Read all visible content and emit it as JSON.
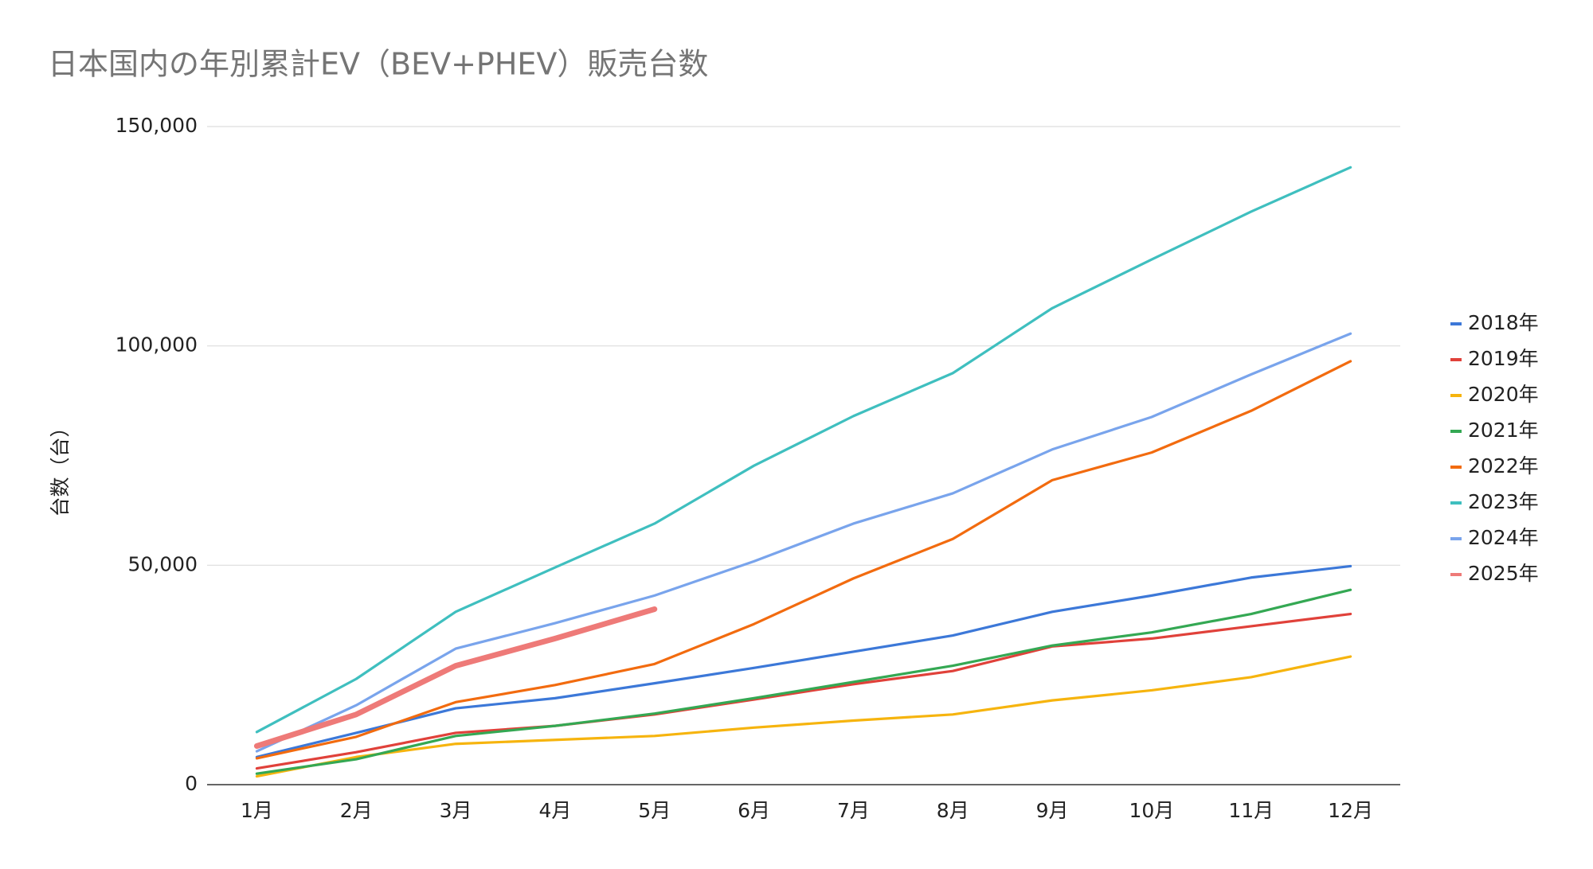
{
  "chart_data": {
    "type": "line",
    "title": "日本国内の年別累計EV（BEV+PHEV）販売台数",
    "y_label": "台数（台）",
    "categories": [
      "1月",
      "2月",
      "3月",
      "4月",
      "5月",
      "6月",
      "7月",
      "8月",
      "9月",
      "10月",
      "11月",
      "12月"
    ],
    "series": [
      {
        "name": "2018年",
        "color": "#3c78d8",
        "values": [
          6300,
          11800,
          17400,
          19700,
          23100,
          26600,
          30300,
          34000,
          39400,
          43100,
          47200,
          49800
        ]
      },
      {
        "name": "2019年",
        "color": "#e0413a",
        "values": [
          3700,
          7400,
          11800,
          13400,
          16000,
          19400,
          22900,
          25900,
          31500,
          33300,
          36100,
          38900
        ]
      },
      {
        "name": "2020年",
        "color": "#f6b40e",
        "values": [
          1900,
          6300,
          9300,
          10200,
          11100,
          13000,
          14600,
          16000,
          19200,
          21500,
          24500,
          29200
        ]
      },
      {
        "name": "2021年",
        "color": "#34a853",
        "values": [
          2500,
          5800,
          11100,
          13400,
          16200,
          19700,
          23400,
          27100,
          31700,
          34700,
          38900,
          44400
        ]
      },
      {
        "name": "2022年",
        "color": "#f26b0f",
        "values": [
          6000,
          10900,
          18800,
          22700,
          27500,
          36600,
          47000,
          56000,
          69400,
          75700,
          85200,
          96500
        ]
      },
      {
        "name": "2023年",
        "color": "#3fbfbf",
        "values": [
          12000,
          24100,
          39400,
          49500,
          59500,
          72700,
          84000,
          93800,
          108600,
          119700,
          130600,
          140700
        ]
      },
      {
        "name": "2024年",
        "color": "#79a4ec",
        "values": [
          7600,
          18100,
          31000,
          36800,
          43100,
          50900,
          59500,
          66400,
          76400,
          83800,
          93500,
          102800
        ]
      },
      {
        "name": "2025年",
        "color": "#ee7a78",
        "values": [
          8800,
          16000,
          27100,
          33300,
          40000,
          null,
          null,
          null,
          null,
          null,
          null,
          null
        ]
      }
    ],
    "ylim": [
      0,
      150000
    ],
    "yticks": [
      0,
      {
        "value": 50000,
        "label": "50,000"
      },
      {
        "value": 100000,
        "label": "100,000"
      },
      {
        "value": 150000,
        "label": "150,000"
      }
    ],
    "grid": true,
    "legend": "right"
  }
}
